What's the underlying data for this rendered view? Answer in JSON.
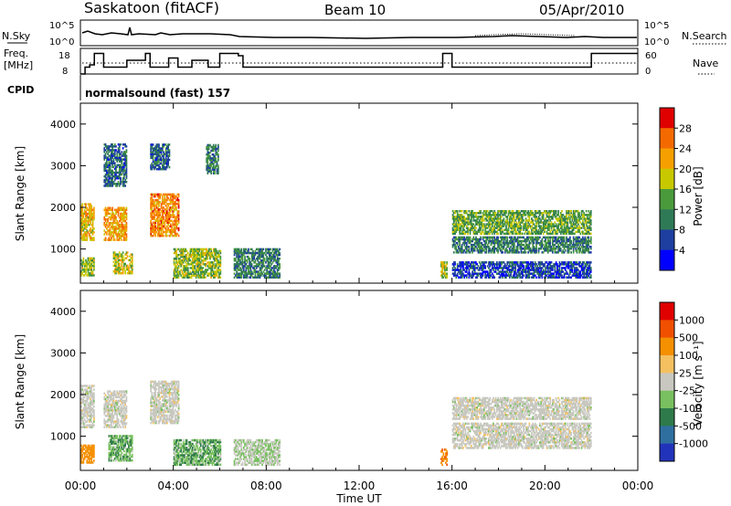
{
  "header": {
    "title": "Saskatoon (fitACF)",
    "beam": "Beam 10",
    "date": "05/Apr/2010"
  },
  "param_panels": {
    "nsky_label": "N.Sky",
    "nsearch_label": "N.Search",
    "noise_ticks_left": [
      "10^5",
      "10^0"
    ],
    "noise_ticks_right": [
      "10^5",
      "10^0"
    ],
    "freq_label": "Freq.",
    "freq_unit": "[MHz]",
    "freq_ticks": [
      "18",
      "8"
    ],
    "nave_label": "Nave",
    "nave_ticks": [
      "60",
      "0"
    ],
    "cpid_label": "CPID",
    "cpid_text": "normalsound (fast) 157",
    "freq_step_series_mhz": {
      "x_hours": [
        0.0,
        0.2,
        0.4,
        0.6,
        0.9,
        1.0,
        2.0,
        2.8,
        3.0,
        3.8,
        4.2,
        4.8,
        5.5,
        6.0,
        6.8,
        7.0,
        15.6,
        16.0,
        21.8,
        22.0
      ],
      "y": [
        8,
        11,
        12,
        17,
        17,
        11,
        14,
        17,
        11,
        15,
        11,
        14,
        11,
        17,
        16,
        11,
        17,
        11,
        11,
        17
      ]
    }
  },
  "panels": [
    {
      "id": "power",
      "colorbar_label": "Power [dB]",
      "colorbar_ticks": [
        "28",
        "24",
        "20",
        "16",
        "12",
        "8",
        "4"
      ],
      "colors": [
        "#0000ff",
        "#1e3ea0",
        "#2f7a56",
        "#4a9a3c",
        "#c8c800",
        "#f5a000",
        "#f56a00",
        "#e00000"
      ]
    },
    {
      "id": "velocity",
      "colorbar_label": "Velocity [m s⁻¹]",
      "colorbar_ticks": [
        "1000",
        "500",
        "100",
        "25",
        "-25",
        "-100",
        "-500",
        "-1000"
      ],
      "colors": [
        "#2233bb",
        "#2f6fa0",
        "#2f7a4a",
        "#79c060",
        "#c8c8c0",
        "#f5c060",
        "#f59000",
        "#f05000",
        "#e00000"
      ]
    }
  ],
  "axes": {
    "ylabel": "Slant Range [km]",
    "yticks": [
      "4000",
      "3000",
      "2000",
      "1000"
    ],
    "xticks": [
      "00:00",
      "04:00",
      "08:00",
      "12:00",
      "16:00",
      "20:00",
      "00:00"
    ],
    "xlabel": "Time UT"
  },
  "chart_data": [
    {
      "type": "heatmap",
      "title": "Saskatoon (fitACF)",
      "ylabel": "Slant Range [km]",
      "xlabel": "Time UT",
      "xlim_hours": [
        0,
        24
      ],
      "ylim_km": [
        180,
        4500
      ],
      "colorbar": {
        "label": "Power [dB]",
        "range": [
          0,
          30
        ],
        "ticks": [
          4,
          8,
          12,
          16,
          20,
          24,
          28
        ]
      },
      "regions": [
        {
          "t0": 0.0,
          "t1": 0.6,
          "r0": 1200,
          "r1": 2100,
          "value": 20
        },
        {
          "t0": 0.0,
          "t1": 0.6,
          "r0": 350,
          "r1": 800,
          "value": 16
        },
        {
          "t0": 1.0,
          "t1": 2.0,
          "r0": 1200,
          "r1": 2000,
          "value": 22
        },
        {
          "t0": 1.4,
          "t1": 2.2,
          "r0": 400,
          "r1": 900,
          "value": 18
        },
        {
          "t0": 1.0,
          "t1": 2.0,
          "r0": 2500,
          "r1": 3500,
          "value": 8
        },
        {
          "t0": 3.0,
          "t1": 4.2,
          "r0": 1300,
          "r1": 2300,
          "value": 24
        },
        {
          "t0": 3.0,
          "t1": 3.8,
          "r0": 2900,
          "r1": 3500,
          "value": 8
        },
        {
          "t0": 4.0,
          "t1": 6.0,
          "r0": 300,
          "r1": 1000,
          "value": 16
        },
        {
          "t0": 5.4,
          "t1": 5.9,
          "r0": 2800,
          "r1": 3500,
          "value": 10
        },
        {
          "t0": 6.6,
          "t1": 8.6,
          "r0": 300,
          "r1": 1000,
          "value": 10
        },
        {
          "t0": 15.5,
          "t1": 15.8,
          "r0": 300,
          "r1": 700,
          "value": 18
        },
        {
          "t0": 16.0,
          "t1": 22.0,
          "r0": 1350,
          "r1": 1900,
          "value": 14
        },
        {
          "t0": 16.0,
          "t1": 22.0,
          "r0": 900,
          "r1": 1300,
          "value": 10
        },
        {
          "t0": 16.0,
          "t1": 22.0,
          "r0": 300,
          "r1": 700,
          "value": 6
        }
      ]
    },
    {
      "type": "heatmap",
      "ylabel": "Slant Range [km]",
      "xlabel": "Time UT",
      "xlim_hours": [
        0,
        24
      ],
      "ylim_km": [
        180,
        4500
      ],
      "colorbar": {
        "label": "Velocity [m s⁻¹]",
        "ticks": [
          1000,
          500,
          100,
          25,
          -25,
          -100,
          -500,
          -1000
        ]
      },
      "regions": [
        {
          "t0": 0.0,
          "t1": 0.6,
          "r0": 1200,
          "r1": 2200,
          "value": 0
        },
        {
          "t0": 0.0,
          "t1": 0.6,
          "r0": 350,
          "r1": 800,
          "value": -300
        },
        {
          "t0": 1.0,
          "t1": 2.0,
          "r0": 1200,
          "r1": 2100,
          "value": 0
        },
        {
          "t0": 1.2,
          "t1": 2.2,
          "r0": 400,
          "r1": 1000,
          "value": 80
        },
        {
          "t0": 3.0,
          "t1": 4.2,
          "r0": 1300,
          "r1": 2300,
          "value": 0
        },
        {
          "t0": 4.0,
          "t1": 6.0,
          "r0": 300,
          "r1": 900,
          "value": 80
        },
        {
          "t0": 6.6,
          "t1": 8.6,
          "r0": 300,
          "r1": 900,
          "value": 20
        },
        {
          "t0": 15.5,
          "t1": 15.8,
          "r0": 300,
          "r1": 700,
          "value": -400
        },
        {
          "t0": 16.0,
          "t1": 22.0,
          "r0": 1400,
          "r1": 1900,
          "value": 0
        },
        {
          "t0": 16.0,
          "t1": 22.0,
          "r0": 700,
          "r1": 1300,
          "value": 0
        }
      ]
    }
  ]
}
